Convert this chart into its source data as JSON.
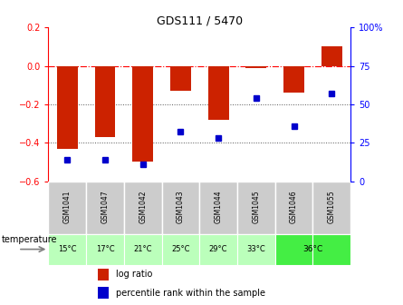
{
  "title": "GDS111 / 5470",
  "samples": [
    "GSM1041",
    "GSM1047",
    "GSM1042",
    "GSM1043",
    "GSM1044",
    "GSM1045",
    "GSM1046",
    "GSM1055"
  ],
  "log_ratios": [
    -0.43,
    -0.37,
    -0.5,
    -0.13,
    -0.28,
    -0.01,
    -0.14,
    0.1
  ],
  "percentile_ranks": [
    14,
    14,
    11,
    32,
    28,
    54,
    36,
    57
  ],
  "ylim_left": [
    -0.6,
    0.2
  ],
  "ylim_right": [
    0,
    100
  ],
  "bar_color": "#cc2200",
  "dot_color": "#0000cc",
  "bg_color": "#ffffff",
  "plot_bg": "#ffffff",
  "gsm_bg": "#cccccc",
  "gsm_border": "#aaaaaa",
  "temp_bg_light": "#bbffbb",
  "temp_bg_dark": "#44ee44",
  "left_yticks": [
    -0.6,
    -0.4,
    -0.2,
    0.0,
    0.2
  ],
  "right_yticks": [
    0,
    25,
    50,
    75,
    100
  ],
  "right_yticklabels": [
    "0",
    "25",
    "50",
    "75",
    "100%"
  ],
  "temps_per_sample": [
    "15°C",
    "17°C",
    "21°C",
    "25°C",
    "29°C",
    "33°C",
    "36°C",
    "36°C"
  ],
  "temp_colors_per_sample": [
    "#bbffbb",
    "#bbffbb",
    "#bbffbb",
    "#bbffbb",
    "#bbffbb",
    "#bbffbb",
    "#44ee44",
    "#44ee44"
  ]
}
